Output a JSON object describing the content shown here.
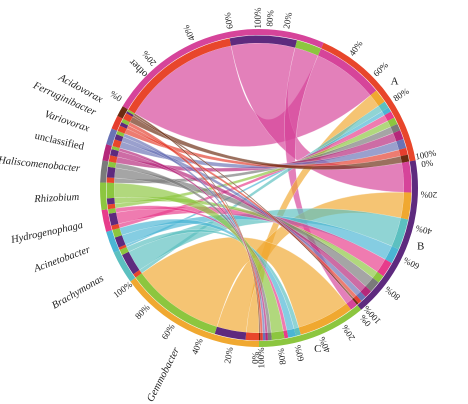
{
  "chart_data": {
    "type": "chord",
    "title": "",
    "sample_colors": {
      "A": "#e8462b",
      "B": "#5e2a7e",
      "C": "#8cc63f"
    },
    "genus_colors": {
      "other": "#d6449a",
      "Acidovorax": "#6b2c12",
      "Ferruginibacter": "#e53e2e",
      "Variovorax": "#6a73b5",
      "unclassified": "#b5277a",
      "Haliscomenobacter": "#7a7a7a",
      "Rhizobium": "#8cc63f",
      "Hydrogenophaga": "#e73c8b",
      "Acinetobacter": "#4bb5d4",
      "Brachymonas": "#5cc0c0",
      "Gemmobacter": "#f0a830"
    },
    "segments": [
      {
        "name": "A",
        "kind": "sample",
        "start_deg": 24,
        "end_deg": 80,
        "italic": false
      },
      {
        "name": "B",
        "kind": "sample",
        "start_deg": 80,
        "end_deg": 140,
        "italic": false
      },
      {
        "name": "C",
        "kind": "sample",
        "start_deg": 140,
        "end_deg": 180,
        "italic": false
      },
      {
        "name": "Gemmobacter",
        "kind": "genus",
        "start_deg": 180,
        "end_deg": 234,
        "italic": true
      },
      {
        "name": "Brachymonas",
        "kind": "genus",
        "start_deg": 234,
        "end_deg": 246,
        "italic": true
      },
      {
        "name": "Acinetobacter",
        "kind": "genus",
        "start_deg": 246,
        "end_deg": 254,
        "italic": true
      },
      {
        "name": "Hydrogenophaga",
        "kind": "genus",
        "start_deg": 254,
        "end_deg": 262,
        "italic": true
      },
      {
        "name": "Rhizobium",
        "kind": "genus",
        "start_deg": 262,
        "end_deg": 272,
        "italic": true
      },
      {
        "name": "Haliscomenobacter",
        "kind": "genus",
        "start_deg": 272,
        "end_deg": 280,
        "italic": true
      },
      {
        "name": "unclassified",
        "kind": "genus",
        "start_deg": 280,
        "end_deg": 286,
        "italic": false
      },
      {
        "name": "Variovorax",
        "kind": "genus",
        "start_deg": 286,
        "end_deg": 292,
        "italic": true
      },
      {
        "name": "Ferruginibacter",
        "kind": "genus",
        "start_deg": 292,
        "end_deg": 297,
        "italic": true
      },
      {
        "name": "Acidovorax",
        "kind": "genus",
        "start_deg": 297,
        "end_deg": 301,
        "italic": true
      },
      {
        "name": "other",
        "kind": "genus",
        "start_deg": 301,
        "end_deg": 384,
        "italic": false
      }
    ],
    "tick_labels": [
      {
        "label": "100%",
        "deg": 0
      },
      {
        "label": "20%",
        "deg": 10
      },
      {
        "label": "40%",
        "deg": 35
      },
      {
        "label": "60%",
        "deg": 46
      },
      {
        "label": "80%",
        "deg": 57
      },
      {
        "label": "100%",
        "deg": 79
      },
      {
        "label": "0%",
        "deg": 82
      },
      {
        "label": "20%",
        "deg": 92
      },
      {
        "label": "40%",
        "deg": 104
      },
      {
        "label": "60%",
        "deg": 116
      },
      {
        "label": "80%",
        "deg": 128
      },
      {
        "label": "100%",
        "deg": 138
      },
      {
        "label": "0%",
        "deg": 141
      },
      {
        "label": "20%",
        "deg": 148
      },
      {
        "label": "40%",
        "deg": 157
      },
      {
        "label": "60%",
        "deg": 166
      },
      {
        "label": "80%",
        "deg": 172
      },
      {
        "label": "100%",
        "deg": 179
      },
      {
        "label": "0%",
        "deg": 181
      },
      {
        "label": "20%",
        "deg": 190
      },
      {
        "label": "40%",
        "deg": 201
      },
      {
        "label": "60%",
        "deg": 212
      },
      {
        "label": "80%",
        "deg": 223
      },
      {
        "label": "100%",
        "deg": 233
      },
      {
        "label": "0%",
        "deg": 303
      },
      {
        "label": "20%",
        "deg": 320
      },
      {
        "label": "40%",
        "deg": 336
      },
      {
        "label": "60%",
        "deg": 350
      },
      {
        "label": "80%",
        "deg": 364
      }
    ],
    "links": [
      {
        "sample": "A",
        "genus": "other",
        "value": 0.3
      },
      {
        "sample": "B",
        "genus": "other",
        "value": 0.16
      },
      {
        "sample": "C",
        "genus": "other",
        "value": 0.06
      },
      {
        "sample": "A",
        "genus": "Gemmobacter",
        "value": 0.06
      },
      {
        "sample": "B",
        "genus": "Gemmobacter",
        "value": 0.14
      },
      {
        "sample": "C",
        "genus": "Gemmobacter",
        "value": 0.44
      },
      {
        "sample": "A",
        "genus": "Brachymonas",
        "value": 0.03
      },
      {
        "sample": "B",
        "genus": "Brachymonas",
        "value": 0.16
      },
      {
        "sample": "C",
        "genus": "Brachymonas",
        "value": 0.04
      },
      {
        "sample": "A",
        "genus": "Acinetobacter",
        "value": 0.02
      },
      {
        "sample": "B",
        "genus": "Acinetobacter",
        "value": 0.08
      },
      {
        "sample": "C",
        "genus": "Acinetobacter",
        "value": 0.06
      },
      {
        "sample": "A",
        "genus": "Hydrogenophaga",
        "value": 0.03
      },
      {
        "sample": "B",
        "genus": "Hydrogenophaga",
        "value": 0.08
      },
      {
        "sample": "C",
        "genus": "Hydrogenophaga",
        "value": 0.03
      },
      {
        "sample": "A",
        "genus": "Rhizobium",
        "value": 0.03
      },
      {
        "sample": "B",
        "genus": "Rhizobium",
        "value": 0.04
      },
      {
        "sample": "C",
        "genus": "Rhizobium",
        "value": 0.1
      },
      {
        "sample": "A",
        "genus": "Haliscomenobacter",
        "value": 0.03
      },
      {
        "sample": "B",
        "genus": "Haliscomenobacter",
        "value": 0.06
      },
      {
        "sample": "C",
        "genus": "Haliscomenobacter",
        "value": 0.03
      },
      {
        "sample": "A",
        "genus": "unclassified",
        "value": 0.04
      },
      {
        "sample": "B",
        "genus": "unclassified",
        "value": 0.04
      },
      {
        "sample": "C",
        "genus": "unclassified",
        "value": 0.02
      },
      {
        "sample": "A",
        "genus": "Variovorax",
        "value": 0.04
      },
      {
        "sample": "B",
        "genus": "Variovorax",
        "value": 0.03
      },
      {
        "sample": "C",
        "genus": "Variovorax",
        "value": 0.02
      },
      {
        "sample": "A",
        "genus": "Ferruginibacter",
        "value": 0.03
      },
      {
        "sample": "B",
        "genus": "Ferruginibacter",
        "value": 0.02
      },
      {
        "sample": "C",
        "genus": "Ferruginibacter",
        "value": 0.02
      },
      {
        "sample": "A",
        "genus": "Acidovorax",
        "value": 0.03
      },
      {
        "sample": "B",
        "genus": "Acidovorax",
        "value": 0.01
      },
      {
        "sample": "C",
        "genus": "Acidovorax",
        "value": 0.01
      }
    ]
  }
}
